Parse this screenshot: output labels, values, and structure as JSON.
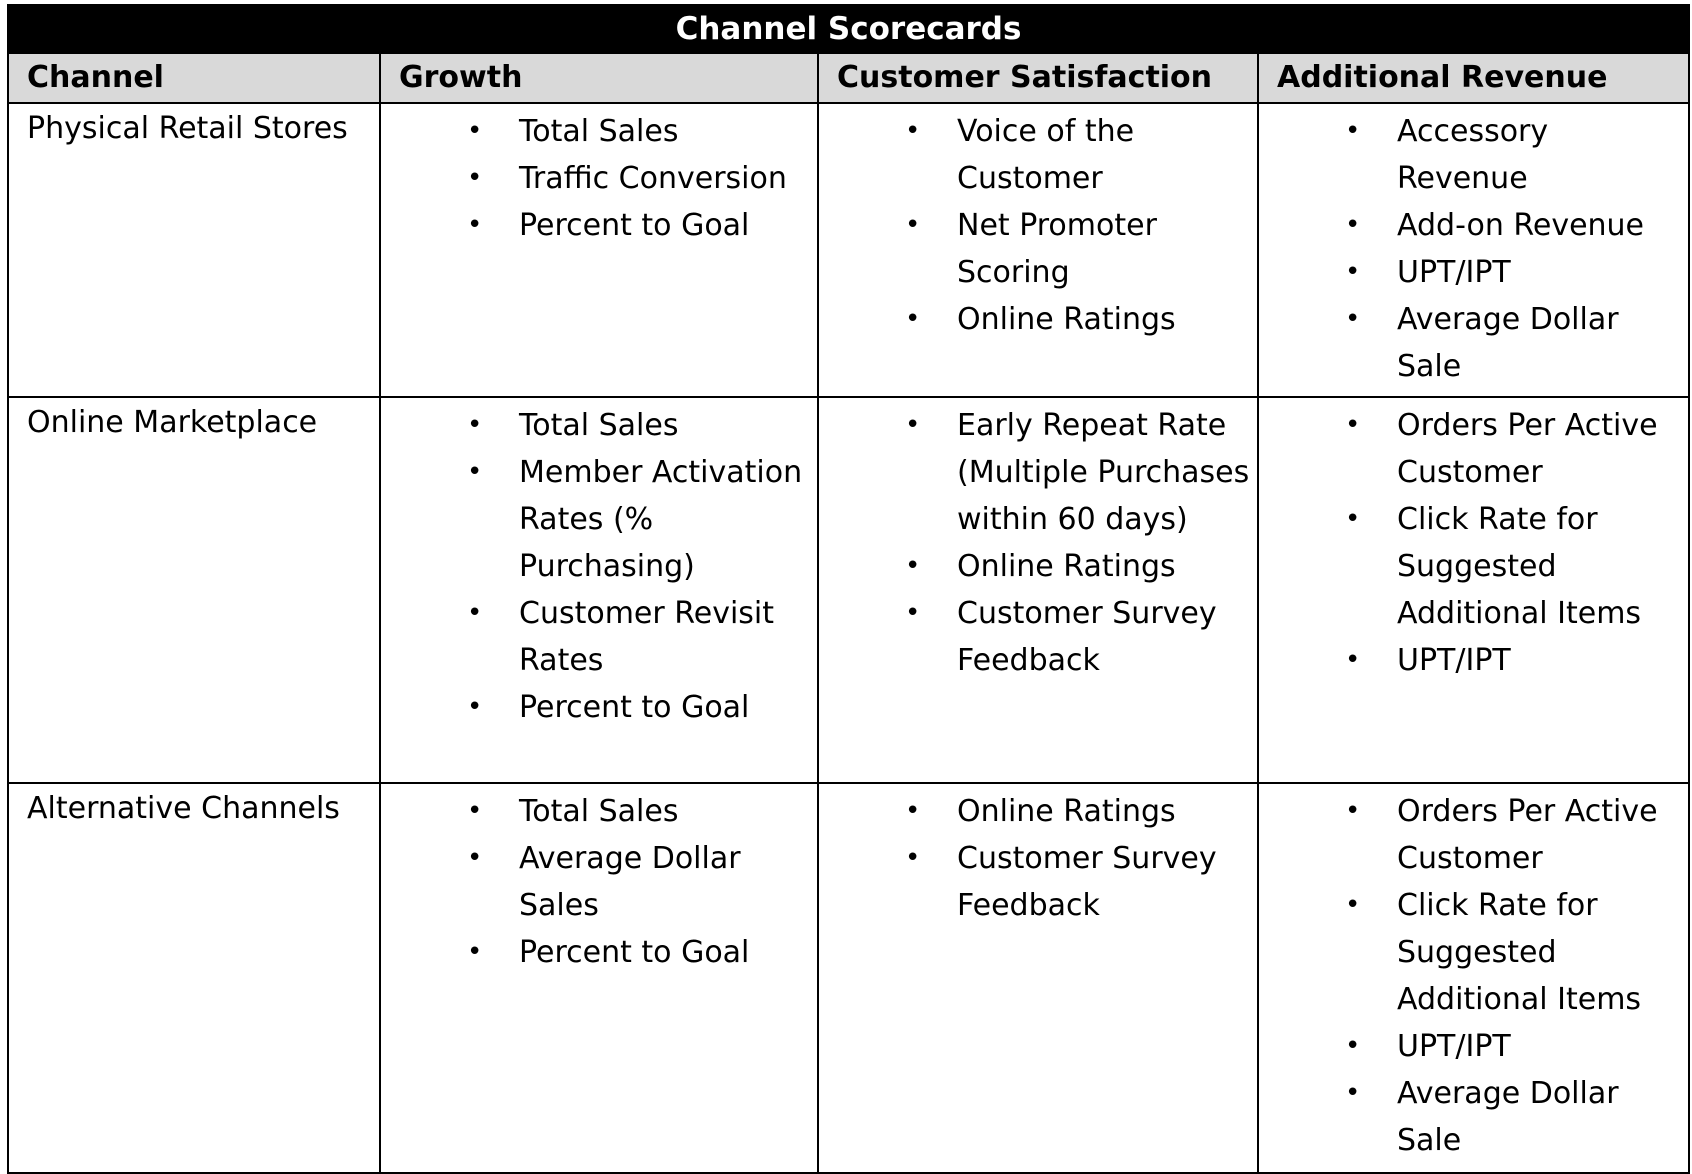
{
  "table": {
    "title": "Channel Scorecards",
    "headers": [
      "Channel",
      "Growth",
      "Customer Satisfaction",
      "Additional Revenue"
    ],
    "bullet": "•",
    "rows": [
      {
        "channel": "Physical Retail Stores",
        "growth": [
          "Total Sales",
          "Traffic Conversion",
          "Percent to Goal"
        ],
        "satisfaction": [
          "Voice of the Customer",
          "Net Promoter Scoring",
          "Online Ratings"
        ],
        "revenue": [
          "Accessory Revenue",
          "Add-on Revenue",
          "UPT/IPT",
          "Average Dollar Sale"
        ]
      },
      {
        "channel": "Online Marketplace",
        "growth": [
          "Total Sales",
          "Member Activation Rates (% Purchasing)",
          "Customer Revisit Rates",
          "Percent to Goal"
        ],
        "satisfaction": [
          "Early Repeat Rate (Multiple Purchases within 60 days)",
          "Online Ratings",
          "Customer Survey Feedback"
        ],
        "revenue": [
          "Orders Per Active Customer",
          "Click Rate for Suggested Additional Items",
          "UPT/IPT"
        ]
      },
      {
        "channel": "Alternative Channels",
        "growth": [
          "Total Sales",
          "Average Dollar Sales",
          "Percent to Goal"
        ],
        "satisfaction": [
          "Online Ratings",
          "Customer Survey Feedback"
        ],
        "revenue": [
          "Orders Per Active Customer",
          "Click Rate for Suggested Additional Items",
          "UPT/IPT",
          "Average Dollar Sale"
        ]
      }
    ]
  }
}
